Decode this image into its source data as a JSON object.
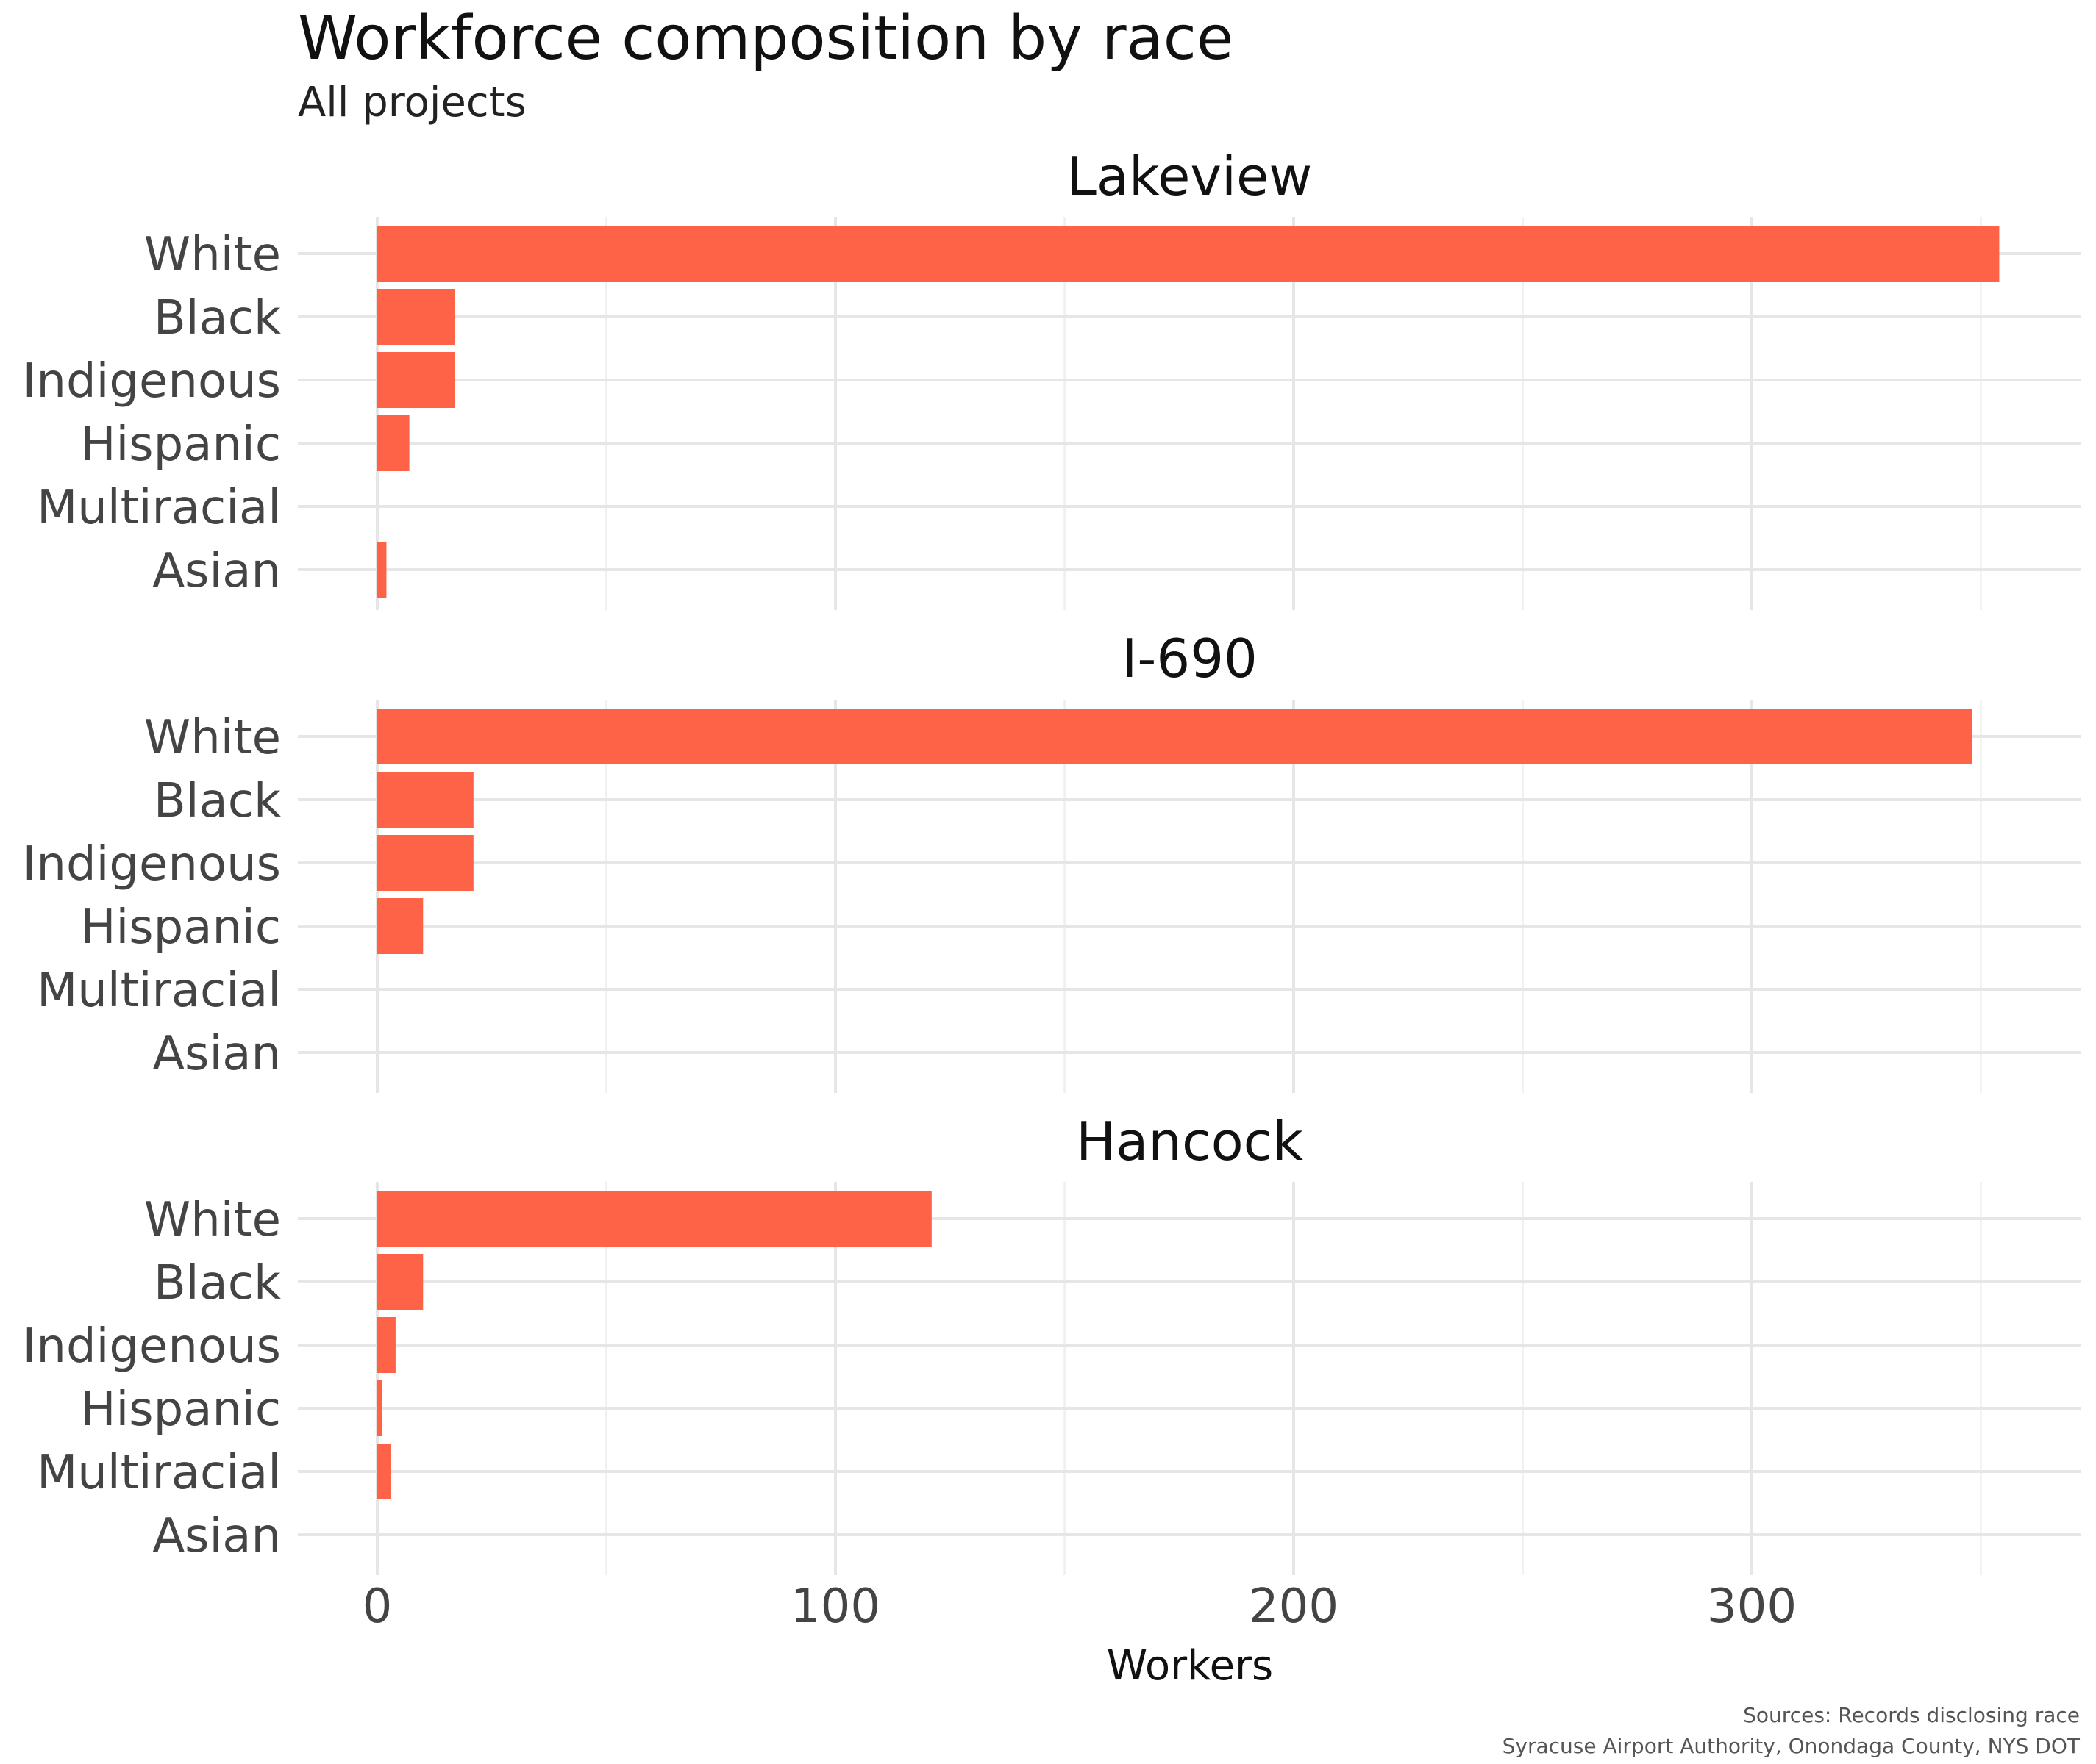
{
  "chart_data": {
    "type": "bar",
    "orientation": "horizontal",
    "title": "Workforce composition by race",
    "subtitle": "All projects",
    "xlabel": "Workers",
    "xlim": [
      0,
      360
    ],
    "xticks": [
      0,
      100,
      200,
      300
    ],
    "xtick_labels": [
      "0",
      "100",
      "200",
      "300"
    ],
    "categories": [
      "White",
      "Black",
      "Indigenous",
      "Hispanic",
      "Multiracial",
      "Asian"
    ],
    "bar_color": "#FF6347",
    "grid": true,
    "facets": [
      {
        "name": "Lakeview",
        "values": [
          354,
          17,
          17,
          7,
          0,
          2
        ]
      },
      {
        "name": "I-690",
        "values": [
          348,
          21,
          21,
          10,
          0,
          0
        ]
      },
      {
        "name": "Hancock",
        "values": [
          121,
          10,
          4,
          1,
          3,
          0
        ]
      }
    ],
    "caption_lines": [
      "Sources: Records disclosing race",
      "Syracuse Airport Authority, Onondaga County, NYS DOT"
    ]
  }
}
